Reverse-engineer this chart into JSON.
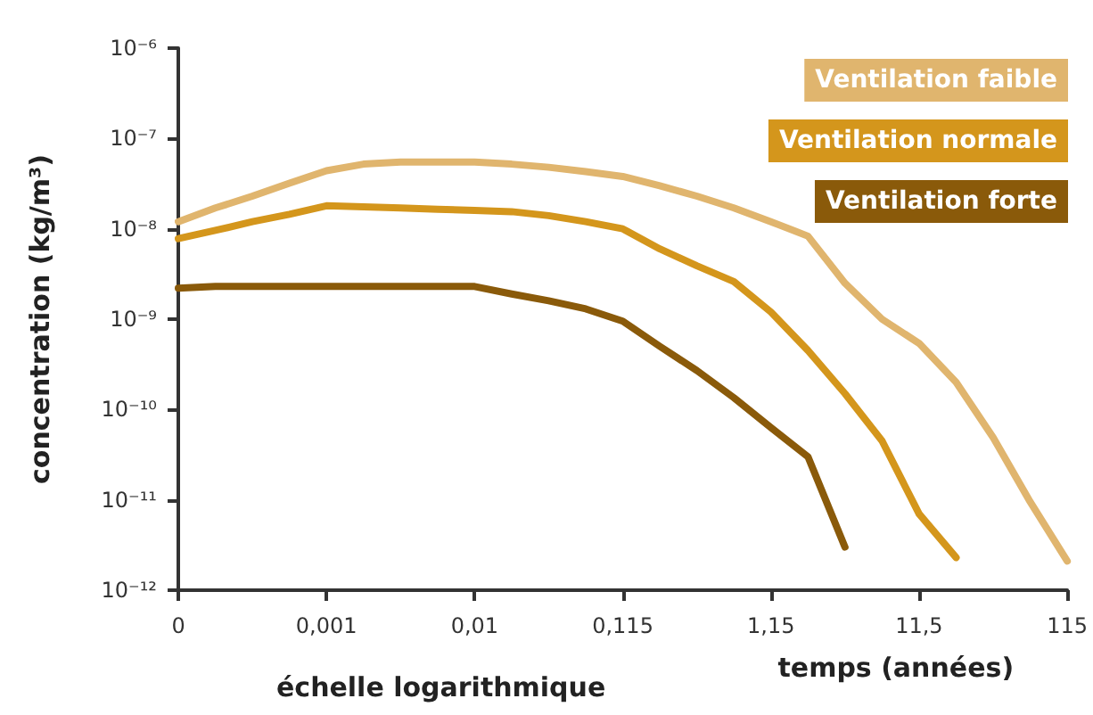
{
  "chart_data": {
    "type": "line",
    "ylabel": "concentration (kg/m³)",
    "xlabel": "temps (années)",
    "annotations": [
      "échelle logarithmique"
    ],
    "log": "y",
    "grid": false,
    "legend": "top right",
    "marker": "none",
    "line_style": "solid",
    "categories": [
      "0",
      null,
      null,
      null,
      "0,001",
      null,
      null,
      null,
      "0,01",
      null,
      null,
      null,
      "0,115",
      null,
      null,
      null,
      "1,15",
      null,
      null,
      null,
      "11,5",
      null,
      null,
      null,
      "115"
    ],
    "ylim": [
      1e-12,
      1e-06
    ],
    "yticks": [
      {
        "value": 1e-12,
        "label": "10⁻¹²"
      },
      {
        "value": 1e-11,
        "label": "10⁻¹¹"
      },
      {
        "value": 1e-10,
        "label": "10⁻¹⁰"
      },
      {
        "value": 1e-09,
        "label": "10⁻⁹"
      },
      {
        "value": 1e-08,
        "label": "10⁻⁸"
      },
      {
        "value": 1e-07,
        "label": "10⁻⁷"
      },
      {
        "value": 1e-06,
        "label": "10⁻⁶"
      }
    ],
    "series": [
      {
        "name": "Ventilation faible",
        "color": "#e0b56e",
        "values": [
          1.2e-08,
          1.7e-08,
          2.3e-08,
          3.2e-08,
          4.4e-08,
          5.2e-08,
          5.5e-08,
          5.5e-08,
          5.5e-08,
          5.2e-08,
          4.8e-08,
          4.3e-08,
          3.8e-08,
          3e-08,
          2.3e-08,
          1.7e-08,
          1.2e-08,
          8.3e-09,
          2.5e-09,
          1e-09,
          5.4e-10,
          2e-10,
          4.9e-11,
          9.5e-12,
          2.1e-12
        ]
      },
      {
        "name": "Ventilation normale",
        "color": "#d4961c",
        "values": [
          7.8e-09,
          9.6e-09,
          1.2e-08,
          1.45e-08,
          1.8e-08,
          1.75e-08,
          1.7e-08,
          1.65e-08,
          1.6e-08,
          1.55e-08,
          1.4e-08,
          1.2e-08,
          1e-08,
          6e-09,
          3.9e-09,
          2.6e-09,
          1.2e-09,
          4.5e-10,
          1.5e-10,
          4.5e-11,
          7e-12,
          2.3e-12,
          null,
          null,
          null
        ]
      },
      {
        "name": "Ventilation forte",
        "color": "#8a5a0a",
        "values": [
          2.2e-09,
          2.3e-09,
          2.3e-09,
          2.3e-09,
          2.3e-09,
          2.3e-09,
          2.3e-09,
          2.3e-09,
          2.3e-09,
          1.9e-09,
          1.6e-09,
          1.3e-09,
          9.5e-10,
          5e-10,
          2.7e-10,
          1.35e-10,
          6.3e-11,
          3e-11,
          3e-12,
          null,
          null,
          null,
          null,
          null,
          null
        ]
      }
    ]
  }
}
